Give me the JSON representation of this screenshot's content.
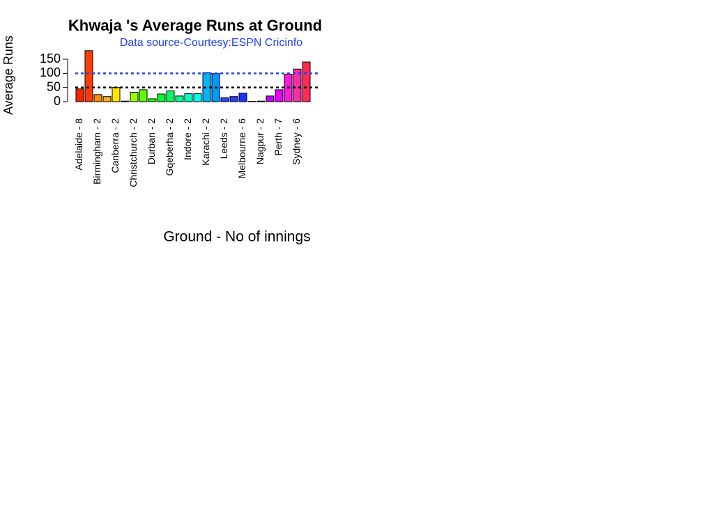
{
  "chart_data": {
    "type": "bar",
    "title": "Khwaja 's Average Runs at Ground",
    "subtitle": "Data source-Courtesy:ESPN Cricinfo",
    "x_label": "Ground - No of innings",
    "y_label": "Average Runs",
    "categories": [
      "Adelaide - 8",
      null,
      "Birmingham - 2",
      null,
      "Canberra - 2",
      null,
      "Christchurch - 2",
      null,
      "Durban - 2",
      null,
      "Gqeberha - 2",
      null,
      "Indore - 2",
      null,
      "Karachi - 2",
      null,
      "Leeds - 2",
      null,
      "Melbourne - 6",
      null,
      "Nagpur - 2",
      null,
      "Perth - 7",
      null,
      "Sydney - 6",
      null
    ],
    "values": [
      45,
      180,
      25,
      18,
      50,
      2,
      33,
      42,
      10,
      27,
      38,
      20,
      28,
      28,
      102,
      99,
      14,
      18,
      30,
      1,
      2,
      20,
      42,
      97,
      115,
      140
    ],
    "colors": [
      "#ff2200",
      "#ff3d00",
      "#ff8c00",
      "#ffb000",
      "#ffe600",
      "#d4ff00",
      "#9cff00",
      "#5cff00",
      "#1eff00",
      "#00ff2a",
      "#00ff5c",
      "#00ff8c",
      "#00ffbf",
      "#00fff0",
      "#00b4ff",
      "#0099ff",
      "#1a4dff",
      "#2a3dff",
      "#1a33ff",
      "#2a00c0",
      "#8000ff",
      "#c000ff",
      "#e600ff",
      "#ff1ad9",
      "#ff2aa6",
      "#ff2a55"
    ],
    "ylim": [
      0,
      180
    ],
    "yticks": [
      0,
      50,
      100,
      150
    ],
    "reference_lines": [
      {
        "value": 50,
        "color": "#000000"
      },
      {
        "value": 100,
        "color": "#1f3dff"
      }
    ]
  }
}
